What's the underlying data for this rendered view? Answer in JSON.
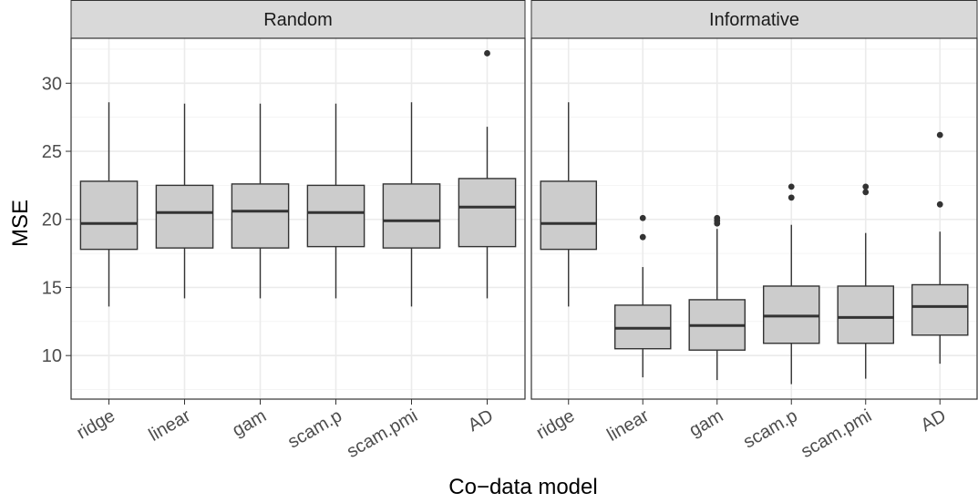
{
  "chart_data": {
    "type": "boxplot",
    "xlabel": "Co−data model",
    "ylabel": "MSE",
    "categories": [
      "ridge",
      "linear",
      "gam",
      "scam.p",
      "scam.pmi",
      "AD"
    ],
    "ylim": [
      6.8,
      33.3
    ],
    "yticks": [
      10,
      15,
      20,
      25,
      30
    ],
    "grid": true,
    "colors": {
      "box_fill": "#cccccc",
      "strip_fill": "#d9d9d9",
      "grid": "#ebebeb",
      "line": "#333333"
    },
    "panels": [
      {
        "title": "Random",
        "boxes": [
          {
            "category": "ridge",
            "whisker_low": 13.6,
            "q1": 17.8,
            "median": 19.7,
            "q3": 22.8,
            "whisker_high": 28.6,
            "outliers": []
          },
          {
            "category": "linear",
            "whisker_low": 14.2,
            "q1": 17.9,
            "median": 20.5,
            "q3": 22.5,
            "whisker_high": 28.5,
            "outliers": []
          },
          {
            "category": "gam",
            "whisker_low": 14.2,
            "q1": 17.9,
            "median": 20.6,
            "q3": 22.6,
            "whisker_high": 28.5,
            "outliers": []
          },
          {
            "category": "scam.p",
            "whisker_low": 14.2,
            "q1": 18.0,
            "median": 20.5,
            "q3": 22.5,
            "whisker_high": 28.5,
            "outliers": []
          },
          {
            "category": "scam.pmi",
            "whisker_low": 13.6,
            "q1": 17.9,
            "median": 19.9,
            "q3": 22.6,
            "whisker_high": 28.6,
            "outliers": []
          },
          {
            "category": "AD",
            "whisker_low": 14.2,
            "q1": 18.0,
            "median": 20.9,
            "q3": 23.0,
            "whisker_high": 26.8,
            "outliers": [
              32.2
            ]
          }
        ]
      },
      {
        "title": "Informative",
        "boxes": [
          {
            "category": "ridge",
            "whisker_low": 13.6,
            "q1": 17.8,
            "median": 19.7,
            "q3": 22.8,
            "whisker_high": 28.6,
            "outliers": []
          },
          {
            "category": "linear",
            "whisker_low": 8.4,
            "q1": 10.5,
            "median": 12.0,
            "q3": 13.7,
            "whisker_high": 16.5,
            "outliers": [
              18.7,
              20.1
            ]
          },
          {
            "category": "gam",
            "whisker_low": 8.2,
            "q1": 10.4,
            "median": 12.2,
            "q3": 14.1,
            "whisker_high": 19.3,
            "outliers": [
              19.7,
              19.9,
              20.1
            ]
          },
          {
            "category": "scam.p",
            "whisker_low": 7.9,
            "q1": 10.9,
            "median": 12.9,
            "q3": 15.1,
            "whisker_high": 19.6,
            "outliers": [
              21.6,
              22.4
            ]
          },
          {
            "category": "scam.pmi",
            "whisker_low": 8.3,
            "q1": 10.9,
            "median": 12.8,
            "q3": 15.1,
            "whisker_high": 19.0,
            "outliers": [
              22.0,
              22.4
            ]
          },
          {
            "category": "AD",
            "whisker_low": 9.4,
            "q1": 11.5,
            "median": 13.6,
            "q3": 15.2,
            "whisker_high": 19.1,
            "outliers": [
              21.1,
              26.2
            ]
          }
        ]
      }
    ]
  }
}
